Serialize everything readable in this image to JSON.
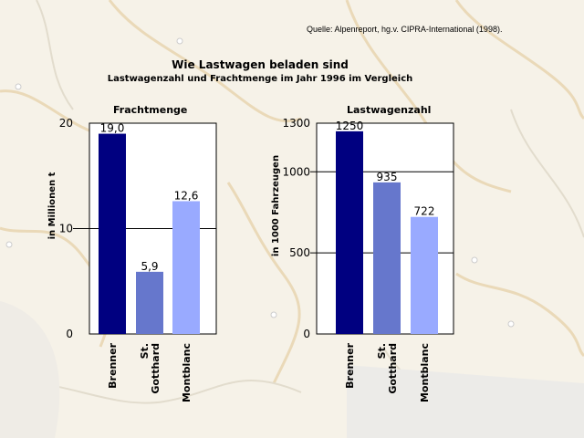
{
  "header": {
    "source": "Quelle: Alpenreport, hg.v. CIPRA-International (1998).",
    "title": "Wie Lastwagen beladen sind",
    "subtitle": "Lastwagenzahl und Frachtmenge im Jahr 1996 im Vergleich"
  },
  "colors": {
    "Brenner": "#000080",
    "St. Gotthard": "#6677cc",
    "Montblanc": "#99aaff"
  },
  "chart_data": [
    {
      "type": "bar",
      "title": "Frachtmenge",
      "ylabel": "in Millionen t",
      "categories": [
        "Brenner",
        "St. Gotthard",
        "Montblanc"
      ],
      "values": [
        19.0,
        5.9,
        12.6
      ],
      "value_labels": [
        "19,0",
        "5,9",
        "12,6"
      ],
      "ylim": [
        0,
        20
      ],
      "yticks": [
        0,
        10,
        20
      ],
      "gridlines": [
        10
      ]
    },
    {
      "type": "bar",
      "title": "Lastwagenzahl",
      "ylabel": "in 1000 Fahrzeugen",
      "categories": [
        "Brenner",
        "St. Gotthard",
        "Montblanc"
      ],
      "values": [
        1250,
        935,
        722
      ],
      "value_labels": [
        "1250",
        "935",
        "722"
      ],
      "ylim": [
        0,
        1300
      ],
      "yticks": [
        0,
        500,
        1000,
        1300
      ],
      "gridlines": [
        500,
        1000
      ]
    }
  ]
}
